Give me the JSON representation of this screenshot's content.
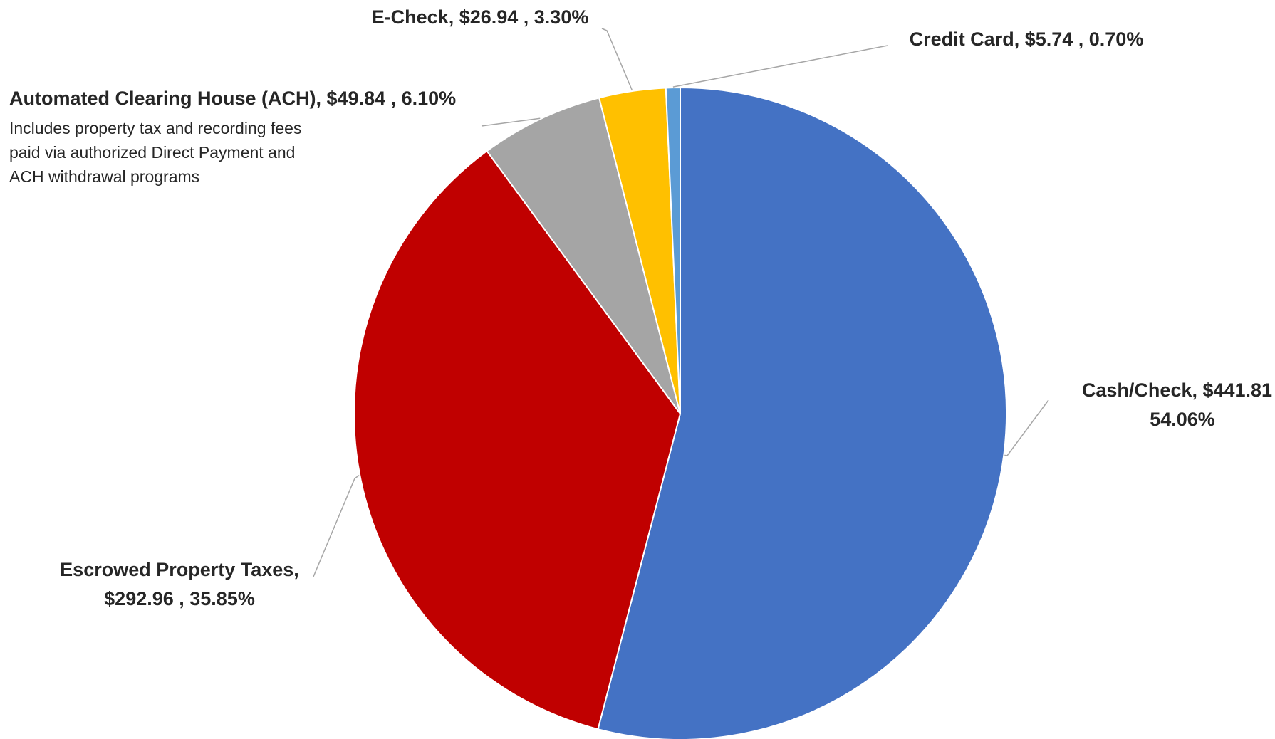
{
  "chart_data": {
    "type": "pie",
    "slices": [
      {
        "category": "Cash/Check",
        "value": 441.81,
        "value_label": "$441.81",
        "percent": 54.06,
        "percent_label": "54.06%",
        "color": "#4472C4"
      },
      {
        "category": "Escrowed Property Taxes",
        "value": 292.96,
        "value_label": "$292.96",
        "percent": 35.85,
        "percent_label": "35.85%",
        "color": "#C00000"
      },
      {
        "category": "Automated Clearing House (ACH)",
        "value": 49.84,
        "value_label": "$49.84",
        "percent": 6.1,
        "percent_label": "6.10%",
        "color": "#A5A5A5",
        "note": [
          "Includes property tax and recording fees",
          "paid via authorized Direct Payment and",
          "ACH withdrawal programs"
        ]
      },
      {
        "category": "E-Check",
        "value": 26.94,
        "value_label": "$26.94",
        "percent": 3.3,
        "percent_label": "3.30%",
        "color": "#FFC000"
      },
      {
        "category": "Credit Card",
        "value": 5.74,
        "value_label": "$5.74",
        "percent": 0.7,
        "percent_label": "0.70%",
        "color": "#5B9BD5"
      }
    ],
    "labels": {
      "cash_check": [
        "Cash/Check,  $441.81 ,",
        "54.06%"
      ],
      "escrowed": [
        "Escrowed Property Taxes,",
        "$292.96 , 35.85%"
      ],
      "ach": [
        "Automated Clearing House (ACH),  $49.84 , 6.10%"
      ],
      "echeck": [
        "E-Check,  $26.94 , 3.30%"
      ],
      "credit_card": [
        "Credit Card,  $5.74 , 0.70%"
      ]
    },
    "start_angle_deg": 0,
    "direction": "clockwise",
    "legend": "none"
  }
}
